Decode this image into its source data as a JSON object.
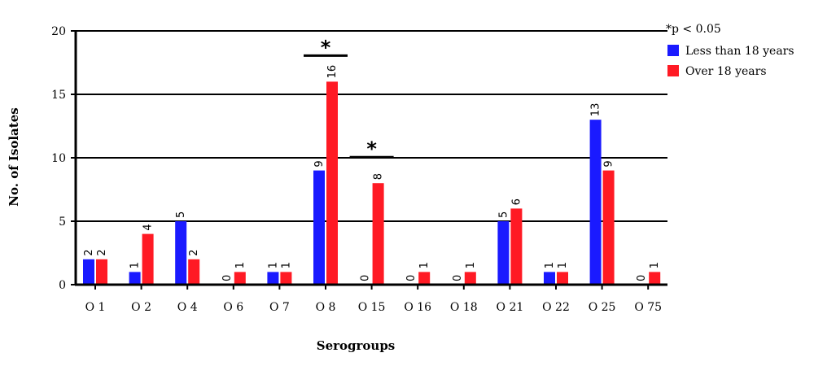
{
  "chart_data": {
    "type": "bar",
    "title": "",
    "xlabel": "Serogroups",
    "ylabel": "No. of Isolates",
    "ylim": [
      0,
      20
    ],
    "yticks": [
      0,
      5,
      10,
      15,
      20
    ],
    "grid": "horizontal",
    "legend_position": "top-right",
    "categories": [
      "O 1",
      "O 2",
      "O 4",
      "O 6",
      "O 7",
      "O 8",
      "O 15",
      "O 16",
      "O 18",
      "O 21",
      "O 22",
      "O 25",
      "O 75"
    ],
    "series": [
      {
        "name": "Less than 18 years",
        "color": "#1a1aff",
        "values": [
          2,
          1,
          5,
          0,
          1,
          9,
          0,
          0,
          0,
          5,
          1,
          13,
          0
        ]
      },
      {
        "name": "Over 18 years",
        "color": "#ff1a24",
        "values": [
          2,
          4,
          2,
          1,
          1,
          16,
          8,
          1,
          1,
          6,
          1,
          9,
          1
        ]
      }
    ],
    "significance_note": "*p < 0.05",
    "significance_marker": "*",
    "significant_categories": [
      "O 8",
      "O 15"
    ]
  }
}
